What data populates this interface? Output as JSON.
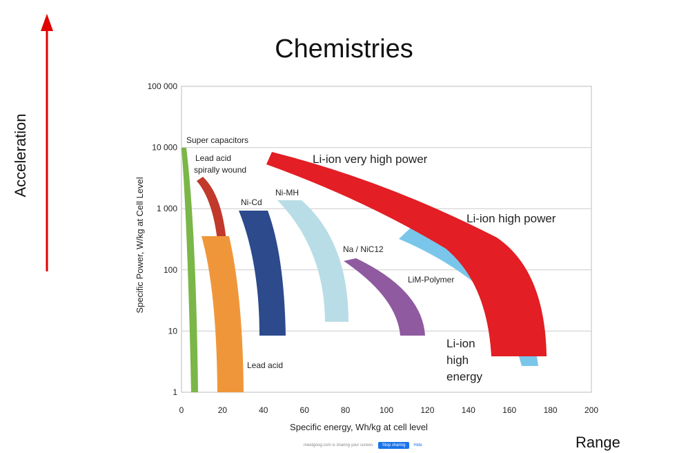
{
  "slide": {
    "title": "Chemistries",
    "side_label": "Acceleration",
    "range_label": "Range",
    "share_bar": {
      "message": "meetgoog.com is sharing your screen.",
      "stop_label": "Stop sharing",
      "hide_label": "Hide"
    }
  },
  "chart_data": {
    "type": "area",
    "title": "",
    "xlabel": "Specific energy, Wh/kg at cell level",
    "ylabel": "Specific Power, W/kg at Cell Level",
    "xlim": [
      0,
      200
    ],
    "ylim": [
      1,
      100000
    ],
    "yscale": "log",
    "grid": "horizontal",
    "xticks": [
      "0",
      "20",
      "40",
      "60",
      "80",
      "100",
      "120",
      "140",
      "160",
      "180",
      "200"
    ],
    "yticks": [
      "1",
      "10",
      "100",
      "1 000",
      "10 000",
      "100 000"
    ],
    "series": [
      {
        "name": "Super capacitors",
        "color": "#7ab648",
        "x": [
          1,
          3,
          5,
          6,
          7
        ],
        "y": [
          10000,
          1000,
          100,
          10,
          1
        ]
      },
      {
        "name": "Lead acid spirally wound",
        "color": "#c0392b",
        "x": [
          9,
          17,
          20
        ],
        "y": [
          3000,
          1000,
          100
        ]
      },
      {
        "name": "Lead acid",
        "color": "#f0963a",
        "x": [
          10,
          30
        ],
        "y": [
          350,
          1
        ]
      },
      {
        "name": "Ni-Cd",
        "color": "#2c4a8c",
        "x": [
          30,
          50
        ],
        "y": [
          1000,
          8
        ]
      },
      {
        "name": "Ni-MH",
        "color": "#b8dde6",
        "x": [
          48,
          80
        ],
        "y": [
          1000,
          13
        ]
      },
      {
        "name": "Na / NiC12",
        "color": "#8f5aa0",
        "x": [
          80,
          120
        ],
        "y": [
          150,
          8
        ]
      },
      {
        "name": "LiM-Polymer",
        "color": "#7ac6ea",
        "x": [
          108,
          170
        ],
        "y": [
          400,
          3
        ]
      },
      {
        "name": "Li-ion very high power",
        "color": "#e31e24",
        "x": [
          45,
          178
        ],
        "y": [
          8000,
          4
        ]
      }
    ],
    "annotations": [
      "Super capacitors",
      "Lead acid",
      "spirally wound",
      "Lead acid",
      "Ni-Cd",
      "Ni-MH",
      "Na / NiC12",
      "LiM-Polymer",
      "Li-ion very high power",
      "Li-ion high power",
      "Li-ion",
      "high",
      "energy"
    ]
  }
}
